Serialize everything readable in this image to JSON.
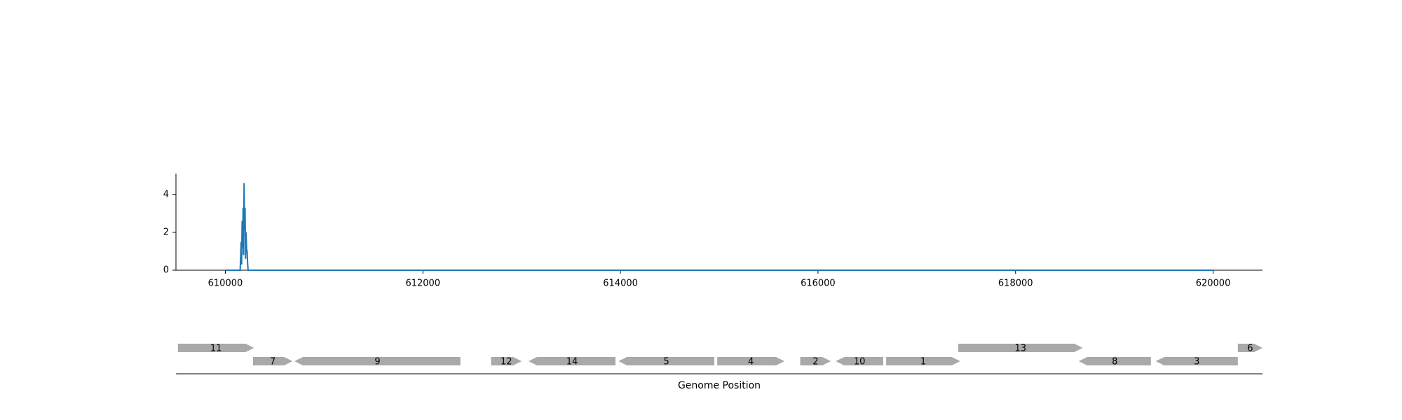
{
  "chart_data": [
    {
      "type": "line",
      "title": "",
      "xlabel": "",
      "ylabel": "",
      "xlim": [
        609500,
        620500
      ],
      "ylim": [
        0,
        5.1
      ],
      "x_ticks": [
        610000,
        612000,
        614000,
        616000,
        618000,
        620000
      ],
      "x_tick_labels": [
        "610000",
        "612000",
        "614000",
        "616000",
        "618000",
        "620000"
      ],
      "y_ticks": [
        0,
        2,
        4
      ],
      "y_tick_labels": [
        "0",
        "2",
        "4"
      ],
      "grid": false,
      "line_color": "#1f77b4",
      "series": [
        {
          "x": [
            610000,
            610150,
            610160,
            610165,
            610170,
            610175,
            610180,
            610185,
            610190,
            610195,
            610200,
            610205,
            610210,
            610215,
            610220,
            610225,
            610230,
            610240,
            620000
          ],
          "y": [
            0,
            0,
            1.5,
            0.3,
            2.6,
            1.2,
            3.3,
            0.8,
            4.6,
            2.1,
            3.3,
            0.6,
            2.0,
            1.1,
            1.0,
            0.4,
            0,
            0,
            0
          ]
        }
      ]
    },
    {
      "type": "gene-track",
      "xlabel": "Genome Position",
      "xlim": [
        609500,
        620500
      ],
      "gene_color": "#a9a9a9",
      "genes": [
        {
          "label": "11",
          "start": 609520,
          "end": 610290,
          "strand": "+",
          "row": 0
        },
        {
          "label": "7",
          "start": 610280,
          "end": 610680,
          "strand": "+",
          "row": 1
        },
        {
          "label": "9",
          "start": 610700,
          "end": 612380,
          "strand": "-",
          "row": 1
        },
        {
          "label": "12",
          "start": 612690,
          "end": 613000,
          "strand": "+",
          "row": 1
        },
        {
          "label": "14",
          "start": 613070,
          "end": 613950,
          "strand": "-",
          "row": 1
        },
        {
          "label": "5",
          "start": 613980,
          "end": 614950,
          "strand": "-",
          "row": 1
        },
        {
          "label": "4",
          "start": 614980,
          "end": 615660,
          "strand": "+",
          "row": 1
        },
        {
          "label": "2",
          "start": 615820,
          "end": 616130,
          "strand": "+",
          "row": 1
        },
        {
          "label": "10",
          "start": 616180,
          "end": 616660,
          "strand": "-",
          "row": 1
        },
        {
          "label": "1",
          "start": 616690,
          "end": 617440,
          "strand": "+",
          "row": 1
        },
        {
          "label": "13",
          "start": 617420,
          "end": 618680,
          "strand": "+",
          "row": 0
        },
        {
          "label": "8",
          "start": 618640,
          "end": 619370,
          "strand": "-",
          "row": 1
        },
        {
          "label": "3",
          "start": 619420,
          "end": 620250,
          "strand": "-",
          "row": 1
        },
        {
          "label": "6",
          "start": 620250,
          "end": 620500,
          "strand": "+",
          "row": 0
        }
      ]
    }
  ]
}
